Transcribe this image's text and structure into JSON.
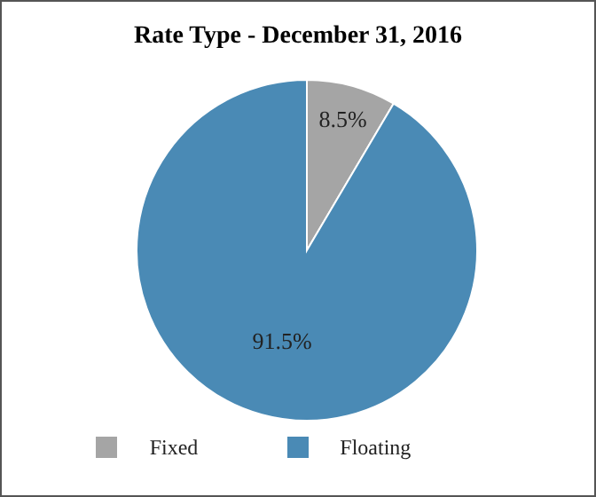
{
  "chart_data": {
    "type": "pie",
    "title": "Rate Type - December 31, 2016",
    "categories": [
      "Fixed",
      "Floating"
    ],
    "values": [
      8.5,
      91.5
    ],
    "colors": [
      "#a5a5a5",
      "#4a8ab5"
    ],
    "value_labels": [
      "8.5%",
      "91.5%"
    ],
    "legend": "bottom"
  }
}
